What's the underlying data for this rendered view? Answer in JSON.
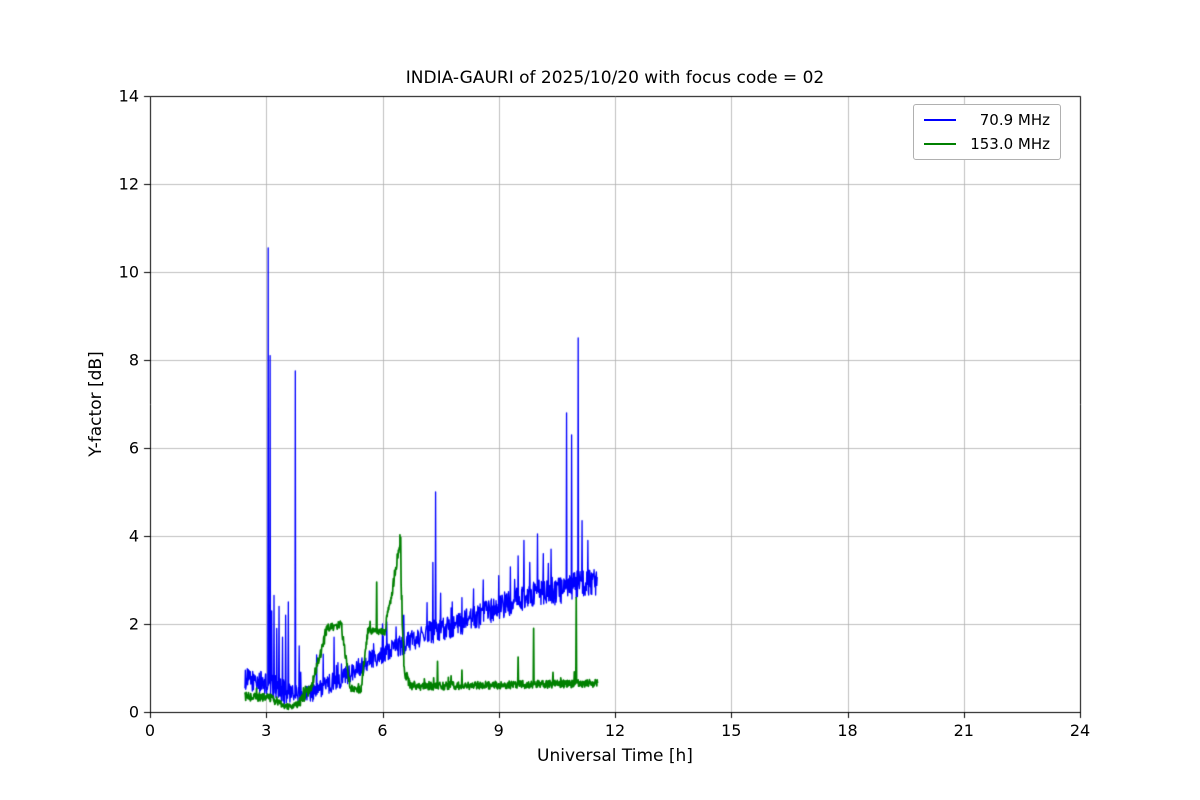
{
  "chart_data": {
    "type": "line",
    "title": "INDIA-GAURI of 2025/10/20 with focus code = 02",
    "xlabel": "Universal Time [h]",
    "ylabel": "Y-factor [dB]",
    "xlim": [
      0,
      24
    ],
    "ylim": [
      0,
      14
    ],
    "xticks": [
      0,
      3,
      6,
      9,
      12,
      15,
      18,
      21,
      24
    ],
    "yticks": [
      0,
      2,
      4,
      6,
      8,
      10,
      12,
      14
    ],
    "grid": true,
    "grid_color": "#b0b0b0",
    "legend_position": "upper right",
    "data_x_range": [
      2.45,
      11.55
    ],
    "series": [
      {
        "name": "70.9 MHz",
        "color": "#0000ff",
        "linewidth": 1.3,
        "segments": [
          [
            2.45,
            3.0,
            0.75,
            0.65,
            0.25
          ],
          [
            3.0,
            3.6,
            0.6,
            0.45,
            0.3
          ],
          [
            3.6,
            4.2,
            0.4,
            0.45,
            0.2
          ],
          [
            4.2,
            5.0,
            0.45,
            0.8,
            0.22
          ],
          [
            5.0,
            5.7,
            0.8,
            1.2,
            0.22
          ],
          [
            5.7,
            6.4,
            1.2,
            1.5,
            0.22
          ],
          [
            6.4,
            7.2,
            1.5,
            1.8,
            0.24
          ],
          [
            7.2,
            8.0,
            1.8,
            2.0,
            0.26
          ],
          [
            8.0,
            8.8,
            2.0,
            2.3,
            0.28
          ],
          [
            8.8,
            9.6,
            2.3,
            2.6,
            0.3
          ],
          [
            9.6,
            10.4,
            2.6,
            2.75,
            0.32
          ],
          [
            10.4,
            11.1,
            2.75,
            2.9,
            0.33
          ],
          [
            11.1,
            11.55,
            2.9,
            2.95,
            0.3
          ]
        ],
        "spikes": [
          [
            3.05,
            10.55
          ],
          [
            3.1,
            8.1
          ],
          [
            3.14,
            2.3
          ],
          [
            3.2,
            2.65
          ],
          [
            3.27,
            1.9
          ],
          [
            3.33,
            2.4
          ],
          [
            3.42,
            1.7
          ],
          [
            3.5,
            2.2
          ],
          [
            3.57,
            2.5
          ],
          [
            3.75,
            7.75
          ],
          [
            3.85,
            1.5
          ],
          [
            4.3,
            1.3
          ],
          [
            4.75,
            1.7
          ],
          [
            6.0,
            2.0
          ],
          [
            6.55,
            2.2
          ],
          [
            7.3,
            3.4
          ],
          [
            7.37,
            5.0
          ],
          [
            7.5,
            2.7
          ],
          [
            7.8,
            2.5
          ],
          [
            8.05,
            2.6
          ],
          [
            8.35,
            2.8
          ],
          [
            8.6,
            3.0
          ],
          [
            9.0,
            3.1
          ],
          [
            9.3,
            3.3
          ],
          [
            9.5,
            3.55
          ],
          [
            9.65,
            3.9
          ],
          [
            9.8,
            3.4
          ],
          [
            10.0,
            4.05
          ],
          [
            10.15,
            3.6
          ],
          [
            10.35,
            3.7
          ],
          [
            10.75,
            6.8
          ],
          [
            10.88,
            6.3
          ],
          [
            11.05,
            8.5
          ],
          [
            11.15,
            4.35
          ],
          [
            11.3,
            3.9
          ]
        ]
      },
      {
        "name": "153.0 MHz",
        "color": "#008000",
        "linewidth": 1.7,
        "segments": [
          [
            2.45,
            3.2,
            0.35,
            0.32,
            0.1
          ],
          [
            3.2,
            3.55,
            0.25,
            0.12,
            0.07
          ],
          [
            3.55,
            3.85,
            0.12,
            0.18,
            0.07
          ],
          [
            3.85,
            4.15,
            0.2,
            0.55,
            0.12
          ],
          [
            4.15,
            4.55,
            0.55,
            1.8,
            0.12
          ],
          [
            4.55,
            4.95,
            1.9,
            2.0,
            0.09
          ],
          [
            4.95,
            5.15,
            1.85,
            0.65,
            0.1
          ],
          [
            5.15,
            5.45,
            0.55,
            0.5,
            0.08
          ],
          [
            5.45,
            5.62,
            0.55,
            1.8,
            0.1
          ],
          [
            5.62,
            6.05,
            1.88,
            1.8,
            0.09
          ],
          [
            6.05,
            6.2,
            1.8,
            2.45,
            0.15
          ],
          [
            6.2,
            6.45,
            2.5,
            3.85,
            0.14
          ],
          [
            6.45,
            6.55,
            3.85,
            1.1,
            0.25
          ],
          [
            6.55,
            6.72,
            0.95,
            0.6,
            0.12
          ],
          [
            6.72,
            11.55,
            0.58,
            0.65,
            0.09
          ]
        ],
        "spikes": [
          [
            5.85,
            2.95
          ],
          [
            6.47,
            3.97
          ],
          [
            7.42,
            1.15
          ],
          [
            8.05,
            0.95
          ],
          [
            9.5,
            1.25
          ],
          [
            9.9,
            1.9
          ],
          [
            10.4,
            0.9
          ],
          [
            11.0,
            2.6
          ]
        ]
      }
    ]
  }
}
